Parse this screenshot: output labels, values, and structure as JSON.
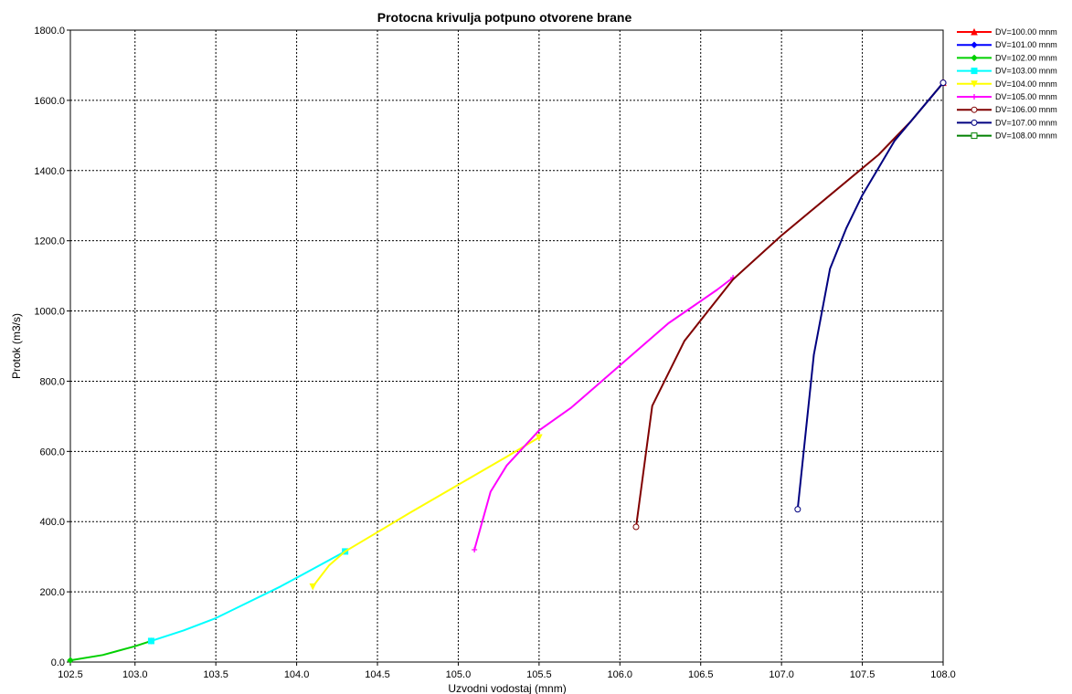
{
  "chart_data": {
    "type": "line",
    "title": "Protocna krivulja potpuno otvorene brane",
    "xlabel": "Uzvodni vodostaj  (mnm)",
    "ylabel": "Protok (m3/s)",
    "xlim": [
      102.6,
      108.0
    ],
    "ylim": [
      0,
      1800
    ],
    "xticks": [
      "102.5",
      "103.0",
      "103.5",
      "104.0",
      "104.5",
      "105.0",
      "105.5",
      "106.0",
      "106.5",
      "107.0",
      "107.5",
      "108.0"
    ],
    "yticks": [
      "0.0",
      "200.0",
      "400.0",
      "600.0",
      "800.0",
      "1000.0",
      "1200.0",
      "1400.0",
      "1600.0",
      "1800.0"
    ],
    "grid": true,
    "legend_position": "right-top",
    "series": [
      {
        "name": "DV=100.00 mnm",
        "color": "#ff0000",
        "marker": "triangle",
        "x": [
          108.0
        ],
        "y": [
          1650
        ]
      },
      {
        "name": "DV=101.00 mnm",
        "color": "#0000ff",
        "marker": "diamond",
        "x": [
          108.0
        ],
        "y": [
          1650
        ]
      },
      {
        "name": "DV=102.00 mnm",
        "color": "#00d000",
        "marker": "diamond",
        "x": [
          102.6,
          102.8,
          103.0,
          103.1
        ],
        "y": [
          5,
          20,
          45,
          60
        ]
      },
      {
        "name": "DV=103.00 mnm",
        "color": "#00ffff",
        "marker": "square",
        "x": [
          103.1,
          103.3,
          103.5,
          103.7,
          103.9,
          104.0,
          104.1,
          104.2,
          104.3
        ],
        "y": [
          60,
          90,
          125,
          170,
          215,
          240,
          265,
          290,
          315
        ]
      },
      {
        "name": "DV=104.00 mnm",
        "color": "#ffff00",
        "marker": "triangle-down",
        "x": [
          104.1,
          104.2,
          104.3,
          104.5,
          104.7,
          105.0,
          105.3,
          105.5
        ],
        "y": [
          215,
          275,
          315,
          370,
          425,
          505,
          585,
          640
        ]
      },
      {
        "name": "DV=105.00 mnm",
        "color": "#ff00ff",
        "marker": "plus",
        "x": [
          105.1,
          105.2,
          105.3,
          105.5,
          105.7,
          106.0,
          106.3,
          106.6,
          106.7
        ],
        "y": [
          320,
          485,
          560,
          660,
          725,
          845,
          965,
          1060,
          1095
        ]
      },
      {
        "name": "DV=106.00 mnm",
        "color": "#800000",
        "marker": "circle",
        "x": [
          106.1,
          106.2,
          106.4,
          106.7,
          107.0,
          107.3,
          107.6,
          107.8,
          108.0
        ],
        "y": [
          385,
          730,
          915,
          1090,
          1215,
          1330,
          1445,
          1540,
          1650
        ]
      },
      {
        "name": "DV=107.00 mnm",
        "color": "#000080",
        "marker": "circle",
        "x": [
          107.1,
          107.2,
          107.3,
          107.4,
          107.5,
          107.7,
          107.9,
          108.0
        ],
        "y": [
          435,
          875,
          1120,
          1235,
          1330,
          1485,
          1595,
          1650
        ]
      },
      {
        "name": "DV=108.00 mnm",
        "color": "#008000",
        "marker": "square-open",
        "x": [],
        "y": []
      }
    ]
  }
}
